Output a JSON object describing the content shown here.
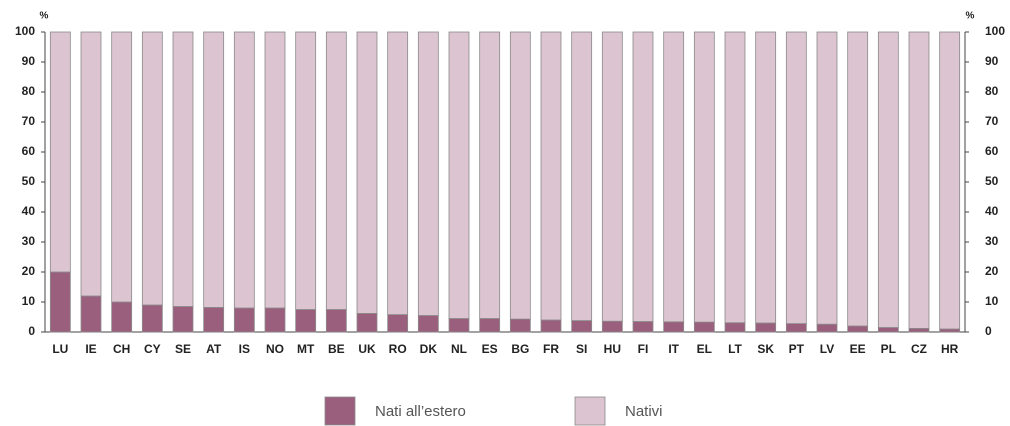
{
  "chart_data": {
    "type": "stacked_bar",
    "y_label": "%",
    "y2_label": "%",
    "categories": [
      "LU",
      "IE",
      "CH",
      "CY",
      "SE",
      "AT",
      "IS",
      "NO",
      "MT",
      "BE",
      "UK",
      "RO",
      "DK",
      "NL",
      "ES",
      "BG",
      "FR",
      "SI",
      "HU",
      "FI",
      "IT",
      "EL",
      "LT",
      "SK",
      "PT",
      "LV",
      "EE",
      "PL",
      "CZ",
      "HR"
    ],
    "series": [
      {
        "name": "Nati all’estero",
        "color": "#9b5f7e",
        "values": [
          20,
          12,
          10,
          9,
          8.5,
          8.2,
          8,
          8,
          7.5,
          7.5,
          6.2,
          5.8,
          5.5,
          4.5,
          4.5,
          4.3,
          4,
          3.8,
          3.6,
          3.5,
          3.4,
          3.3,
          3.1,
          3,
          2.8,
          2.6,
          2,
          1.5,
          1.2,
          1
        ]
      },
      {
        "name": "Nativi",
        "color": "#dcc4d0",
        "values": [
          80,
          88,
          90,
          91,
          91.5,
          91.8,
          92,
          92,
          92.5,
          92.5,
          93.8,
          94.2,
          94.5,
          95.5,
          95.5,
          95.7,
          96,
          96.2,
          96.4,
          96.5,
          96.6,
          96.7,
          96.9,
          97,
          97.2,
          97.4,
          98,
          98.5,
          98.8,
          99
        ]
      }
    ],
    "ylim": [
      0,
      100
    ],
    "yticks": [
      0,
      10,
      20,
      30,
      40,
      50,
      60,
      70,
      80,
      90,
      100
    ],
    "y2lim": [
      0,
      100
    ],
    "y2ticks": [
      0,
      10,
      20,
      30,
      40,
      50,
      60,
      70,
      80,
      90,
      100
    ]
  }
}
